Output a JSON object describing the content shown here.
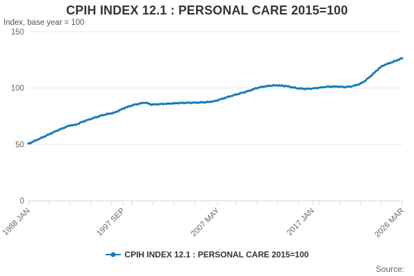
{
  "chart": {
    "source_label": "Source:"
  },
  "chart_data": {
    "type": "line",
    "title": "CPIH INDEX 12.1 : PERSONAL CARE 2015=100",
    "y_axis_title": "Index, base year = 100",
    "xlabel": "",
    "ylabel": "Index, base year = 100",
    "ylim": [
      0,
      150
    ],
    "y_ticks": [
      0,
      50,
      100,
      150
    ],
    "x_start_year": 1988.0,
    "x_end_year": 2026.1667,
    "x_minor_tick_intervals": 18,
    "x_tick_labels": [
      {
        "label": "1988 JAN",
        "year": 1988.0
      },
      {
        "label": "1997 SEP",
        "year": 1997.6667
      },
      {
        "label": "2007 MAY",
        "year": 2007.3333
      },
      {
        "label": "2017 JAN",
        "year": 2017.0
      },
      {
        "label": "2026 MAR",
        "year": 2026.1667
      }
    ],
    "grid": "horizontal",
    "legend_position": "bottom-center",
    "series": [
      {
        "name": "CPIH INDEX 12.1 : PERSONAL CARE 2015=100",
        "color": "#1178bd",
        "anchors": [
          [
            1988.0,
            50.5
          ],
          [
            1988.5,
            52.5
          ],
          [
            1989.0,
            54.5
          ],
          [
            1990.0,
            58.5
          ],
          [
            1991.0,
            62.5
          ],
          [
            1991.7,
            65.0
          ],
          [
            1992.3,
            67.0
          ],
          [
            1992.8,
            67.3
          ],
          [
            1993.5,
            70.0
          ],
          [
            1994.5,
            73.0
          ],
          [
            1995.7,
            76.3
          ],
          [
            1996.8,
            78.2
          ],
          [
            1997.8,
            82.3
          ],
          [
            1998.7,
            85.0
          ],
          [
            1999.9,
            87.2
          ],
          [
            2000.6,
            85.4
          ],
          [
            2001.5,
            85.8
          ],
          [
            2002.5,
            86.3
          ],
          [
            2003.5,
            86.8
          ],
          [
            2004.5,
            87.0
          ],
          [
            2005.5,
            87.2
          ],
          [
            2006.3,
            87.6
          ],
          [
            2007.0,
            88.3
          ],
          [
            2007.6,
            90.0
          ],
          [
            2008.5,
            92.5
          ],
          [
            2009.5,
            95.0
          ],
          [
            2010.5,
            97.5
          ],
          [
            2011.3,
            100.0
          ],
          [
            2012.0,
            101.3
          ],
          [
            2012.8,
            102.2
          ],
          [
            2013.5,
            102.4
          ],
          [
            2014.3,
            101.8
          ],
          [
            2015.0,
            100.6
          ],
          [
            2015.5,
            99.8
          ],
          [
            2016.3,
            99.3
          ],
          [
            2017.0,
            99.6
          ],
          [
            2017.8,
            100.5
          ],
          [
            2018.5,
            101.2
          ],
          [
            2019.5,
            101.4
          ],
          [
            2020.3,
            100.9
          ],
          [
            2021.0,
            101.5
          ],
          [
            2021.8,
            103.5
          ],
          [
            2022.3,
            106.0
          ],
          [
            2022.8,
            109.5
          ],
          [
            2023.3,
            113.5
          ],
          [
            2023.8,
            117.5
          ],
          [
            2024.2,
            120.0
          ],
          [
            2024.8,
            122.0
          ],
          [
            2025.3,
            123.5
          ],
          [
            2025.8,
            125.3
          ],
          [
            2026.1667,
            126.5
          ]
        ]
      }
    ]
  },
  "colors": {
    "series_line": "#1178bd",
    "gridline": "#e6e6e6",
    "axis_and_ticks": "#ccd6eb",
    "title_text": "#333333",
    "axis_label_text": "#666666",
    "subtitle_text": "#555555",
    "background": "#ffffff"
  }
}
